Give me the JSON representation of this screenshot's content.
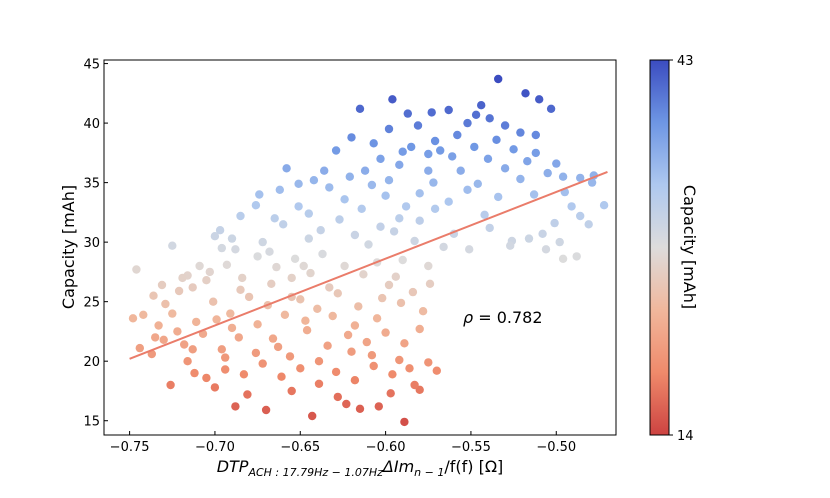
{
  "chart_data": {
    "type": "scatter",
    "title": "",
    "xlabel": "DTP_ACH: 17.79Hz − 1.07Hz ΔIm_n−1/f(f) [Ω]",
    "xlabel_parts": {
      "main": "DTP",
      "sub": "ACH : 17.79Hz − 1.07Hz",
      "delta_im": "ΔIm",
      "sub2": "n − 1",
      "tail": "/f(f) [Ω]"
    },
    "ylabel": "Capacity [mAh]",
    "xlim": [
      -0.765,
      -0.465
    ],
    "ylim": [
      13.8,
      45.3
    ],
    "xticks": [
      -0.75,
      -0.7,
      -0.65,
      -0.6,
      -0.55,
      -0.5
    ],
    "xtick_labels": [
      "−0.75",
      "−0.70",
      "−0.65",
      "−0.60",
      "−0.55",
      "−0.50"
    ],
    "yticks": [
      15,
      20,
      25,
      30,
      35,
      40,
      45
    ],
    "ytick_labels": [
      "15",
      "20",
      "25",
      "30",
      "35",
      "40",
      "45"
    ],
    "annotation": {
      "symbol": "ρ",
      "text": " = 0.782"
    },
    "colorbar": {
      "label": "Capacity [mAh]",
      "min": 14,
      "max": 43,
      "min_label": "14",
      "max_label": "43",
      "colormap": "coolwarm_r",
      "colors": [
        "#cd4341",
        "#ef8a6b",
        "#f0b79c",
        "#dddcdc",
        "#aec8ef",
        "#6e96e4",
        "#3b4cc0"
      ]
    },
    "trend_line": {
      "color": "#ea7c6a",
      "x": [
        -0.75,
        -0.47
      ],
      "y": [
        20.2,
        35.9
      ]
    },
    "points": [
      [
        -0.534,
        43.7
      ],
      [
        -0.518,
        42.5
      ],
      [
        -0.51,
        42.0
      ],
      [
        -0.596,
        42.0
      ],
      [
        -0.503,
        41.2
      ],
      [
        -0.615,
        41.2
      ],
      [
        -0.587,
        40.8
      ],
      [
        -0.581,
        39.8
      ],
      [
        -0.563,
        41.1
      ],
      [
        -0.547,
        40.7
      ],
      [
        -0.544,
        41.5
      ],
      [
        -0.539,
        40.4
      ],
      [
        -0.53,
        39.8
      ],
      [
        -0.521,
        39.2
      ],
      [
        -0.512,
        39.0
      ],
      [
        -0.535,
        38.6
      ],
      [
        -0.558,
        39.0
      ],
      [
        -0.571,
        38.5
      ],
      [
        -0.598,
        39.5
      ],
      [
        -0.607,
        38.3
      ],
      [
        -0.62,
        38.8
      ],
      [
        -0.629,
        37.7
      ],
      [
        -0.603,
        37.0
      ],
      [
        -0.592,
        36.5
      ],
      [
        -0.575,
        37.4
      ],
      [
        -0.561,
        37.2
      ],
      [
        -0.548,
        38.0
      ],
      [
        -0.525,
        37.8
      ],
      [
        -0.517,
        36.8
      ],
      [
        -0.5,
        36.6
      ],
      [
        -0.496,
        35.5
      ],
      [
        -0.486,
        35.4
      ],
      [
        -0.479,
        35.0
      ],
      [
        -0.472,
        33.1
      ],
      [
        -0.481,
        31.5
      ],
      [
        -0.491,
        33.0
      ],
      [
        -0.501,
        31.6
      ],
      [
        -0.508,
        30.7
      ],
      [
        -0.516,
        30.3
      ],
      [
        -0.496,
        28.6
      ],
      [
        -0.488,
        28.8
      ],
      [
        -0.526,
        30.1
      ],
      [
        -0.542,
        32.3
      ],
      [
        -0.552,
        34.4
      ],
      [
        -0.572,
        35.0
      ],
      [
        -0.58,
        34.1
      ],
      [
        -0.588,
        33.0
      ],
      [
        -0.598,
        35.2
      ],
      [
        -0.612,
        36.0
      ],
      [
        -0.621,
        35.5
      ],
      [
        -0.633,
        34.6
      ],
      [
        -0.642,
        35.2
      ],
      [
        -0.651,
        34.9
      ],
      [
        -0.658,
        36.2
      ],
      [
        -0.662,
        34.4
      ],
      [
        -0.676,
        33.1
      ],
      [
        -0.685,
        32.2
      ],
      [
        -0.697,
        31.0
      ],
      [
        -0.7,
        30.5
      ],
      [
        -0.688,
        29.4
      ],
      [
        -0.672,
        30.0
      ],
      [
        -0.66,
        31.5
      ],
      [
        -0.645,
        32.4
      ],
      [
        -0.638,
        31.0
      ],
      [
        -0.627,
        31.9
      ],
      [
        -0.614,
        32.8
      ],
      [
        -0.603,
        31.3
      ],
      [
        -0.595,
        30.9
      ],
      [
        -0.583,
        30.1
      ],
      [
        -0.566,
        29.6
      ],
      [
        -0.551,
        29.4
      ],
      [
        -0.539,
        31.2
      ],
      [
        -0.527,
        29.7
      ],
      [
        -0.709,
        28.0
      ],
      [
        -0.716,
        27.2
      ],
      [
        -0.725,
        29.7
      ],
      [
        -0.731,
        26.4
      ],
      [
        -0.746,
        27.7
      ],
      [
        -0.742,
        23.9
      ],
      [
        -0.736,
        25.5
      ],
      [
        -0.729,
        24.8
      ],
      [
        -0.721,
        25.9
      ],
      [
        -0.713,
        26.2
      ],
      [
        -0.703,
        27.5
      ],
      [
        -0.693,
        28.1
      ],
      [
        -0.684,
        27.0
      ],
      [
        -0.675,
        28.8
      ],
      [
        -0.664,
        27.9
      ],
      [
        -0.653,
        28.6
      ],
      [
        -0.644,
        27.4
      ],
      [
        -0.637,
        29.0
      ],
      [
        -0.624,
        28.0
      ],
      [
        -0.613,
        27.3
      ],
      [
        -0.605,
        28.3
      ],
      [
        -0.594,
        27.1
      ],
      [
        -0.584,
        25.8
      ],
      [
        -0.574,
        26.5
      ],
      [
        -0.578,
        24.2
      ],
      [
        -0.591,
        24.9
      ],
      [
        -0.602,
        25.3
      ],
      [
        -0.616,
        24.6
      ],
      [
        -0.628,
        25.7
      ],
      [
        -0.64,
        24.4
      ],
      [
        -0.65,
        25.2
      ],
      [
        -0.659,
        23.9
      ],
      [
        -0.669,
        24.7
      ],
      [
        -0.68,
        25.4
      ],
      [
        -0.691,
        24.0
      ],
      [
        -0.701,
        25.0
      ],
      [
        -0.711,
        23.3
      ],
      [
        -0.722,
        22.5
      ],
      [
        -0.733,
        23.0
      ],
      [
        -0.748,
        23.6
      ],
      [
        -0.744,
        21.1
      ],
      [
        -0.737,
        20.6
      ],
      [
        -0.73,
        21.8
      ],
      [
        -0.718,
        21.4
      ],
      [
        -0.707,
        22.3
      ],
      [
        -0.696,
        21.0
      ],
      [
        -0.686,
        22.0
      ],
      [
        -0.676,
        20.7
      ],
      [
        -0.666,
        21.9
      ],
      [
        -0.656,
        20.4
      ],
      [
        -0.646,
        22.6
      ],
      [
        -0.634,
        21.3
      ],
      [
        -0.622,
        22.2
      ],
      [
        -0.611,
        21.6
      ],
      [
        -0.6,
        22.4
      ],
      [
        -0.589,
        21.5
      ],
      [
        -0.58,
        22.7
      ],
      [
        -0.575,
        19.9
      ],
      [
        -0.586,
        19.4
      ],
      [
        -0.596,
        18.9
      ],
      [
        -0.607,
        19.6
      ],
      [
        -0.618,
        18.4
      ],
      [
        -0.629,
        19.1
      ],
      [
        -0.639,
        18.1
      ],
      [
        -0.65,
        19.4
      ],
      [
        -0.661,
        18.7
      ],
      [
        -0.672,
        19.8
      ],
      [
        -0.683,
        18.9
      ],
      [
        -0.694,
        19.3
      ],
      [
        -0.705,
        18.6
      ],
      [
        -0.716,
        20.0
      ],
      [
        -0.726,
        18.0
      ],
      [
        -0.688,
        16.2
      ],
      [
        -0.67,
        15.9
      ],
      [
        -0.643,
        15.4
      ],
      [
        -0.623,
        16.4
      ],
      [
        -0.615,
        16.0
      ],
      [
        -0.604,
        16.2
      ],
      [
        -0.589,
        14.9
      ],
      [
        -0.58,
        17.6
      ],
      [
        -0.57,
        19.2
      ],
      [
        -0.597,
        17.3
      ],
      [
        -0.628,
        17.0
      ],
      [
        -0.655,
        17.5
      ],
      [
        -0.681,
        17.2
      ],
      [
        -0.7,
        17.8
      ],
      [
        -0.712,
        19.0
      ],
      [
        -0.667,
        26.5
      ],
      [
        -0.633,
        26.2
      ],
      [
        -0.598,
        26.4
      ],
      [
        -0.618,
        23.0
      ],
      [
        -0.647,
        23.4
      ],
      [
        -0.675,
        23.1
      ],
      [
        -0.699,
        23.5
      ],
      [
        -0.725,
        24.0
      ],
      [
        -0.61,
        29.8
      ],
      [
        -0.59,
        28.5
      ],
      [
        -0.575,
        28.0
      ],
      [
        -0.645,
        30.3
      ],
      [
        -0.668,
        29.2
      ],
      [
        -0.69,
        30.3
      ],
      [
        -0.58,
        31.8
      ],
      [
        -0.563,
        33.4
      ],
      [
        -0.546,
        34.9
      ],
      [
        -0.534,
        33.8
      ],
      [
        -0.521,
        35.3
      ],
      [
        -0.513,
        34.0
      ],
      [
        -0.505,
        35.8
      ],
      [
        -0.53,
        36.2
      ],
      [
        -0.575,
        36.0
      ],
      [
        -0.608,
        34.8
      ],
      [
        -0.624,
        33.6
      ],
      [
        -0.651,
        33.0
      ],
      [
        -0.592,
        32.0
      ],
      [
        -0.618,
        30.6
      ],
      [
        -0.655,
        27.0
      ],
      [
        -0.685,
        26.0
      ],
      [
        -0.705,
        26.8
      ],
      [
        -0.631,
        23.8
      ],
      [
        -0.663,
        21.2
      ],
      [
        -0.694,
        20.3
      ],
      [
        -0.713,
        21.0
      ],
      [
        -0.608,
        20.5
      ],
      [
        -0.592,
        20.1
      ],
      [
        -0.583,
        18.0
      ],
      [
        -0.568,
        37.7
      ],
      [
        -0.54,
        37.0
      ],
      [
        -0.556,
        36.0
      ],
      [
        -0.585,
        38.0
      ],
      [
        -0.552,
        40.0
      ],
      [
        -0.573,
        40.9
      ],
      [
        -0.59,
        37.6
      ],
      [
        -0.512,
        37.5
      ],
      [
        -0.495,
        34.2
      ],
      [
        -0.486,
        32.2
      ],
      [
        -0.478,
        35.6
      ],
      [
        -0.498,
        30.0
      ],
      [
        -0.506,
        29.4
      ],
      [
        -0.665,
        32.0
      ],
      [
        -0.674,
        34.0
      ],
      [
        -0.636,
        36.0
      ],
      [
        -0.648,
        28.0
      ],
      [
        -0.605,
        23.6
      ],
      [
        -0.62,
        20.8
      ],
      [
        -0.639,
        20.0
      ],
      [
        -0.56,
        30.7
      ],
      [
        -0.571,
        32.8
      ],
      [
        -0.6,
        33.9
      ],
      [
        -0.655,
        25.4
      ],
      [
        -0.69,
        22.8
      ],
      [
        -0.735,
        22.0
      ],
      [
        -0.719,
        27.0
      ],
      [
        -0.696,
        29.5
      ]
    ]
  }
}
